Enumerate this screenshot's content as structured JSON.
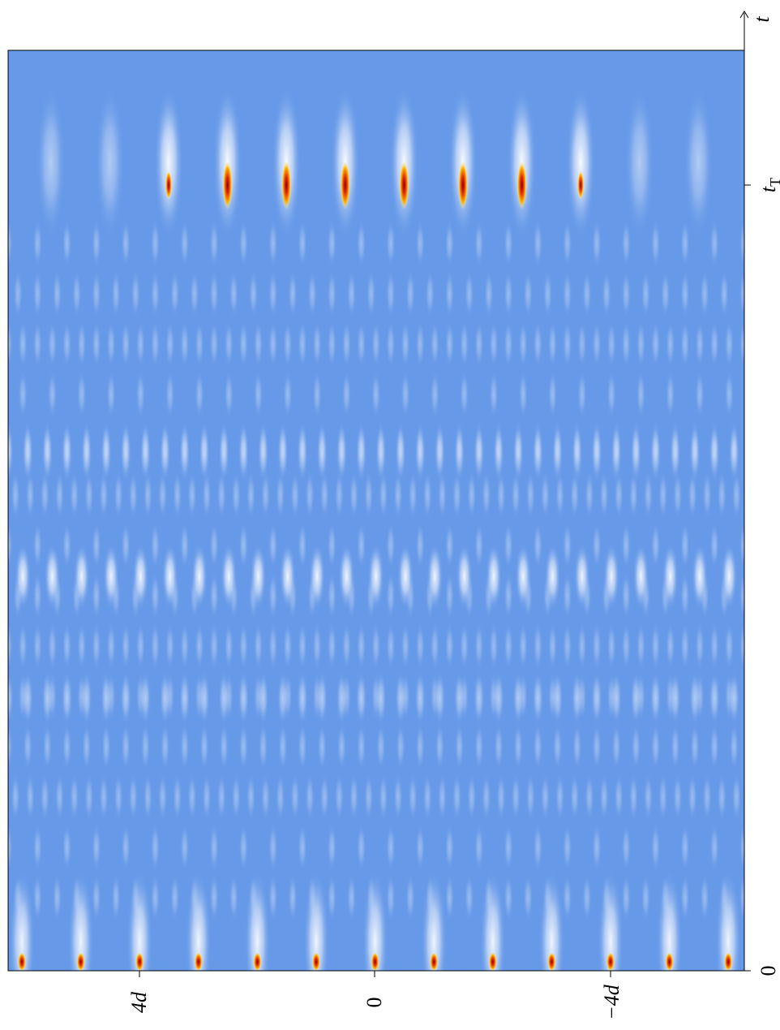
{
  "figure": {
    "time_axis": {
      "label": "t",
      "ticks": [
        {
          "base": "0"
        },
        {
          "base": "t",
          "sub": "T"
        }
      ]
    },
    "position_axis": {
      "ticks": [
        "4d",
        "0",
        "−4d"
      ]
    }
  }
}
